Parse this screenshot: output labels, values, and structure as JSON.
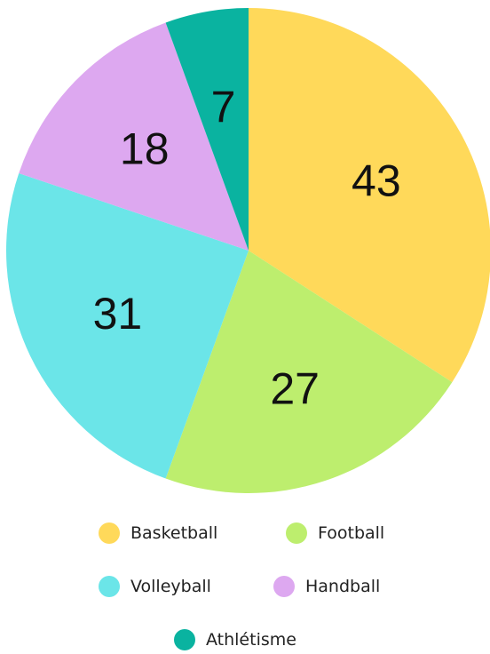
{
  "chart_data": {
    "type": "pie",
    "categories": [
      "Basketball",
      "Football",
      "Volleyball",
      "Handball",
      "Athlétisme"
    ],
    "values": [
      43,
      27,
      31,
      18,
      7
    ],
    "colors": [
      "#FFD95A",
      "#BDEE6E",
      "#6BE5E8",
      "#DDA8F0",
      "#0AB3A0"
    ],
    "legend": "bottom"
  }
}
